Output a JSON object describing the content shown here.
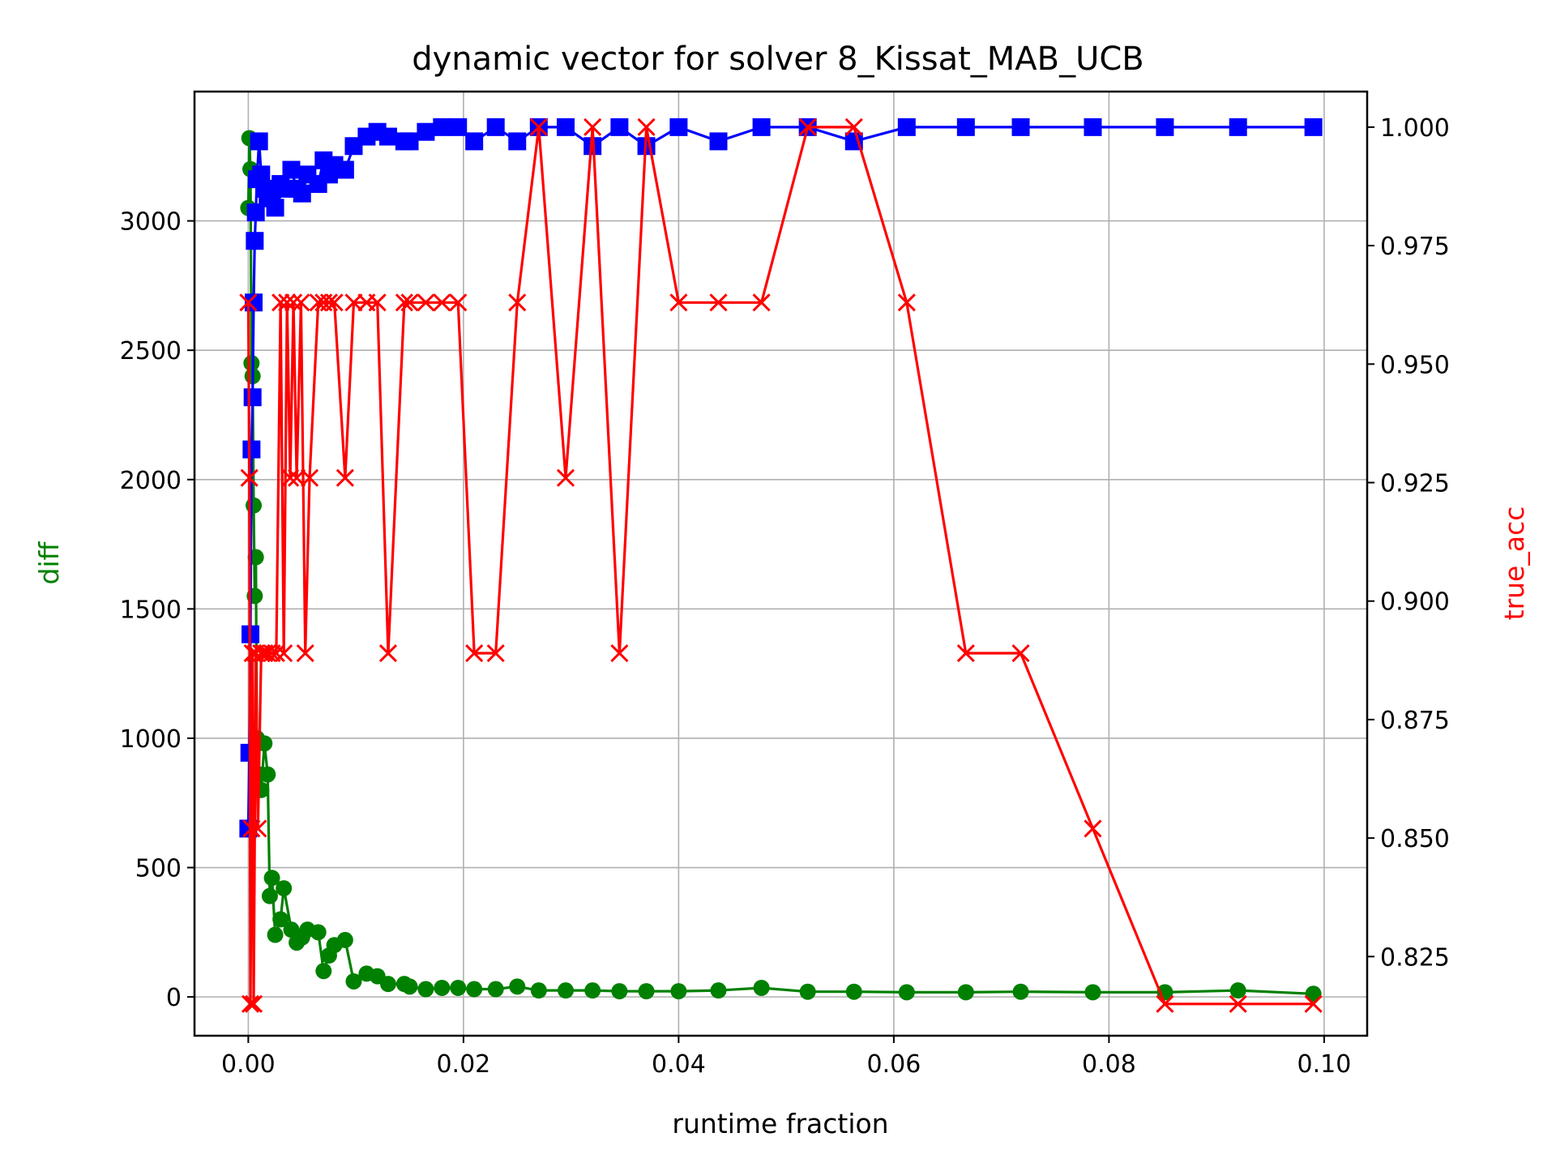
{
  "chart_data": {
    "type": "line",
    "title": "dynamic vector for solver 8_Kissat_MAB_UCB",
    "xlabel": "runtime fraction",
    "ylabel_left": "diff",
    "ylabel_right": "true_acc",
    "xlim": [
      -0.005,
      0.104
    ],
    "ylim_left": [
      -150,
      3500
    ],
    "ylim_right": [
      0.8083,
      1.0075
    ],
    "x_ticks": [
      0.0,
      0.02,
      0.04,
      0.06,
      0.08,
      0.1
    ],
    "x_tick_labels": [
      "0.00",
      "0.02",
      "0.04",
      "0.06",
      "0.08",
      "0.10"
    ],
    "y_left_ticks": [
      0,
      500,
      1000,
      1500,
      2000,
      2500,
      3000
    ],
    "y_left_tick_labels": [
      "0",
      "500",
      "1000",
      "1500",
      "2000",
      "2500",
      "3000"
    ],
    "y_right_ticks": [
      0.825,
      0.85,
      0.875,
      0.9,
      0.925,
      0.95,
      0.975,
      1.0
    ],
    "y_right_tick_labels": [
      "0.825",
      "0.850",
      "0.875",
      "0.900",
      "0.925",
      "0.950",
      "0.975",
      "1.000"
    ],
    "grid": true,
    "colors": {
      "diff": "#008000",
      "blue_series": "#0000ff",
      "true_acc": "#ff0000",
      "axis_left_label": "#008000",
      "axis_right_label": "#ff0000"
    },
    "series": [
      {
        "key": "diff",
        "axis": "left",
        "marker": "circle",
        "color": "#008000",
        "x": [
          0.0,
          0.0001,
          0.0002,
          0.0003,
          0.0004,
          0.0005,
          0.0006,
          0.0007,
          0.0008,
          0.001,
          0.0012,
          0.0015,
          0.0018,
          0.002,
          0.0022,
          0.0025,
          0.003,
          0.0033,
          0.004,
          0.0045,
          0.005,
          0.0055,
          0.0065,
          0.007,
          0.0075,
          0.008,
          0.009,
          0.0098,
          0.011,
          0.012,
          0.013,
          0.0145,
          0.015,
          0.0165,
          0.018,
          0.0195,
          0.021,
          0.023,
          0.025,
          0.027,
          0.0295,
          0.032,
          0.0345,
          0.037,
          0.04,
          0.0437,
          0.0477,
          0.052,
          0.0563,
          0.0612,
          0.0667,
          0.0718,
          0.0785,
          0.0852,
          0.092,
          0.099
        ],
        "values": [
          3050,
          3320,
          3200,
          2450,
          2400,
          1900,
          1550,
          1700,
          1000,
          860,
          800,
          980,
          860,
          390,
          460,
          240,
          300,
          420,
          260,
          210,
          230,
          260,
          250,
          100,
          160,
          200,
          220,
          60,
          90,
          80,
          50,
          50,
          40,
          30,
          35,
          35,
          30,
          30,
          40,
          25,
          25,
          25,
          22,
          22,
          22,
          25,
          35,
          20,
          20,
          18,
          18,
          20,
          18,
          18,
          25,
          12
        ]
      },
      {
        "key": "blue_series",
        "axis": "right",
        "marker": "square",
        "color": "#0000ff",
        "x": [
          0.0,
          0.0001,
          0.0002,
          0.0003,
          0.0004,
          0.0005,
          0.0006,
          0.0007,
          0.0008,
          0.001,
          0.0012,
          0.0015,
          0.0018,
          0.002,
          0.0022,
          0.0025,
          0.003,
          0.0033,
          0.004,
          0.0045,
          0.005,
          0.0055,
          0.0065,
          0.007,
          0.0075,
          0.008,
          0.009,
          0.0098,
          0.011,
          0.012,
          0.013,
          0.0145,
          0.015,
          0.0165,
          0.018,
          0.0195,
          0.021,
          0.023,
          0.025,
          0.027,
          0.0295,
          0.032,
          0.0345,
          0.037,
          0.04,
          0.0437,
          0.0477,
          0.052,
          0.0563,
          0.0612,
          0.0667,
          0.0718,
          0.0785,
          0.0852,
          0.092,
          0.099
        ],
        "values": [
          0.852,
          0.868,
          0.893,
          0.932,
          0.943,
          0.963,
          0.976,
          0.982,
          0.989,
          0.997,
          0.99,
          0.987,
          0.985,
          0.985,
          0.986,
          0.983,
          0.988,
          0.987,
          0.991,
          0.987,
          0.986,
          0.99,
          0.988,
          0.993,
          0.99,
          0.992,
          0.991,
          0.996,
          0.998,
          0.999,
          0.998,
          0.997,
          0.997,
          0.999,
          1.0,
          1.0,
          0.997,
          1.0,
          0.997,
          1.0,
          1.0,
          0.996,
          1.0,
          0.996,
          1.0,
          0.997,
          1.0,
          1.0,
          0.997,
          1.0,
          1.0,
          1.0,
          1.0,
          1.0,
          1.0,
          1.0
        ]
      },
      {
        "key": "true_acc",
        "axis": "right",
        "marker": "x",
        "color": "#ff0000",
        "x": [
          0.0,
          0.0001,
          0.0002,
          0.0003,
          0.0004,
          0.0005,
          0.0007,
          0.0009,
          0.0012,
          0.0015,
          0.0018,
          0.0022,
          0.0026,
          0.003,
          0.0033,
          0.0036,
          0.0039,
          0.0042,
          0.0045,
          0.0049,
          0.0053,
          0.0057,
          0.0065,
          0.007,
          0.0075,
          0.008,
          0.009,
          0.0098,
          0.011,
          0.012,
          0.013,
          0.0145,
          0.015,
          0.0165,
          0.018,
          0.0195,
          0.021,
          0.023,
          0.025,
          0.027,
          0.0295,
          0.032,
          0.0345,
          0.037,
          0.04,
          0.0437,
          0.0477,
          0.052,
          0.0563,
          0.0612,
          0.0667,
          0.0718,
          0.0785,
          0.0852,
          0.092,
          0.099
        ],
        "values": [
          0.963,
          0.926,
          0.815,
          0.852,
          0.889,
          0.815,
          0.889,
          0.852,
          0.889,
          0.889,
          0.889,
          0.889,
          0.889,
          0.963,
          0.889,
          0.963,
          0.926,
          0.963,
          0.926,
          0.963,
          0.889,
          0.926,
          0.963,
          0.963,
          0.963,
          0.963,
          0.926,
          0.963,
          0.963,
          0.963,
          0.889,
          0.963,
          0.963,
          0.963,
          0.963,
          0.963,
          0.889,
          0.889,
          0.963,
          1.0,
          0.926,
          1.0,
          0.889,
          1.0,
          0.963,
          0.963,
          0.963,
          1.0,
          1.0,
          0.963,
          0.889,
          0.889,
          0.852,
          0.815,
          0.815,
          0.815
        ]
      }
    ]
  }
}
